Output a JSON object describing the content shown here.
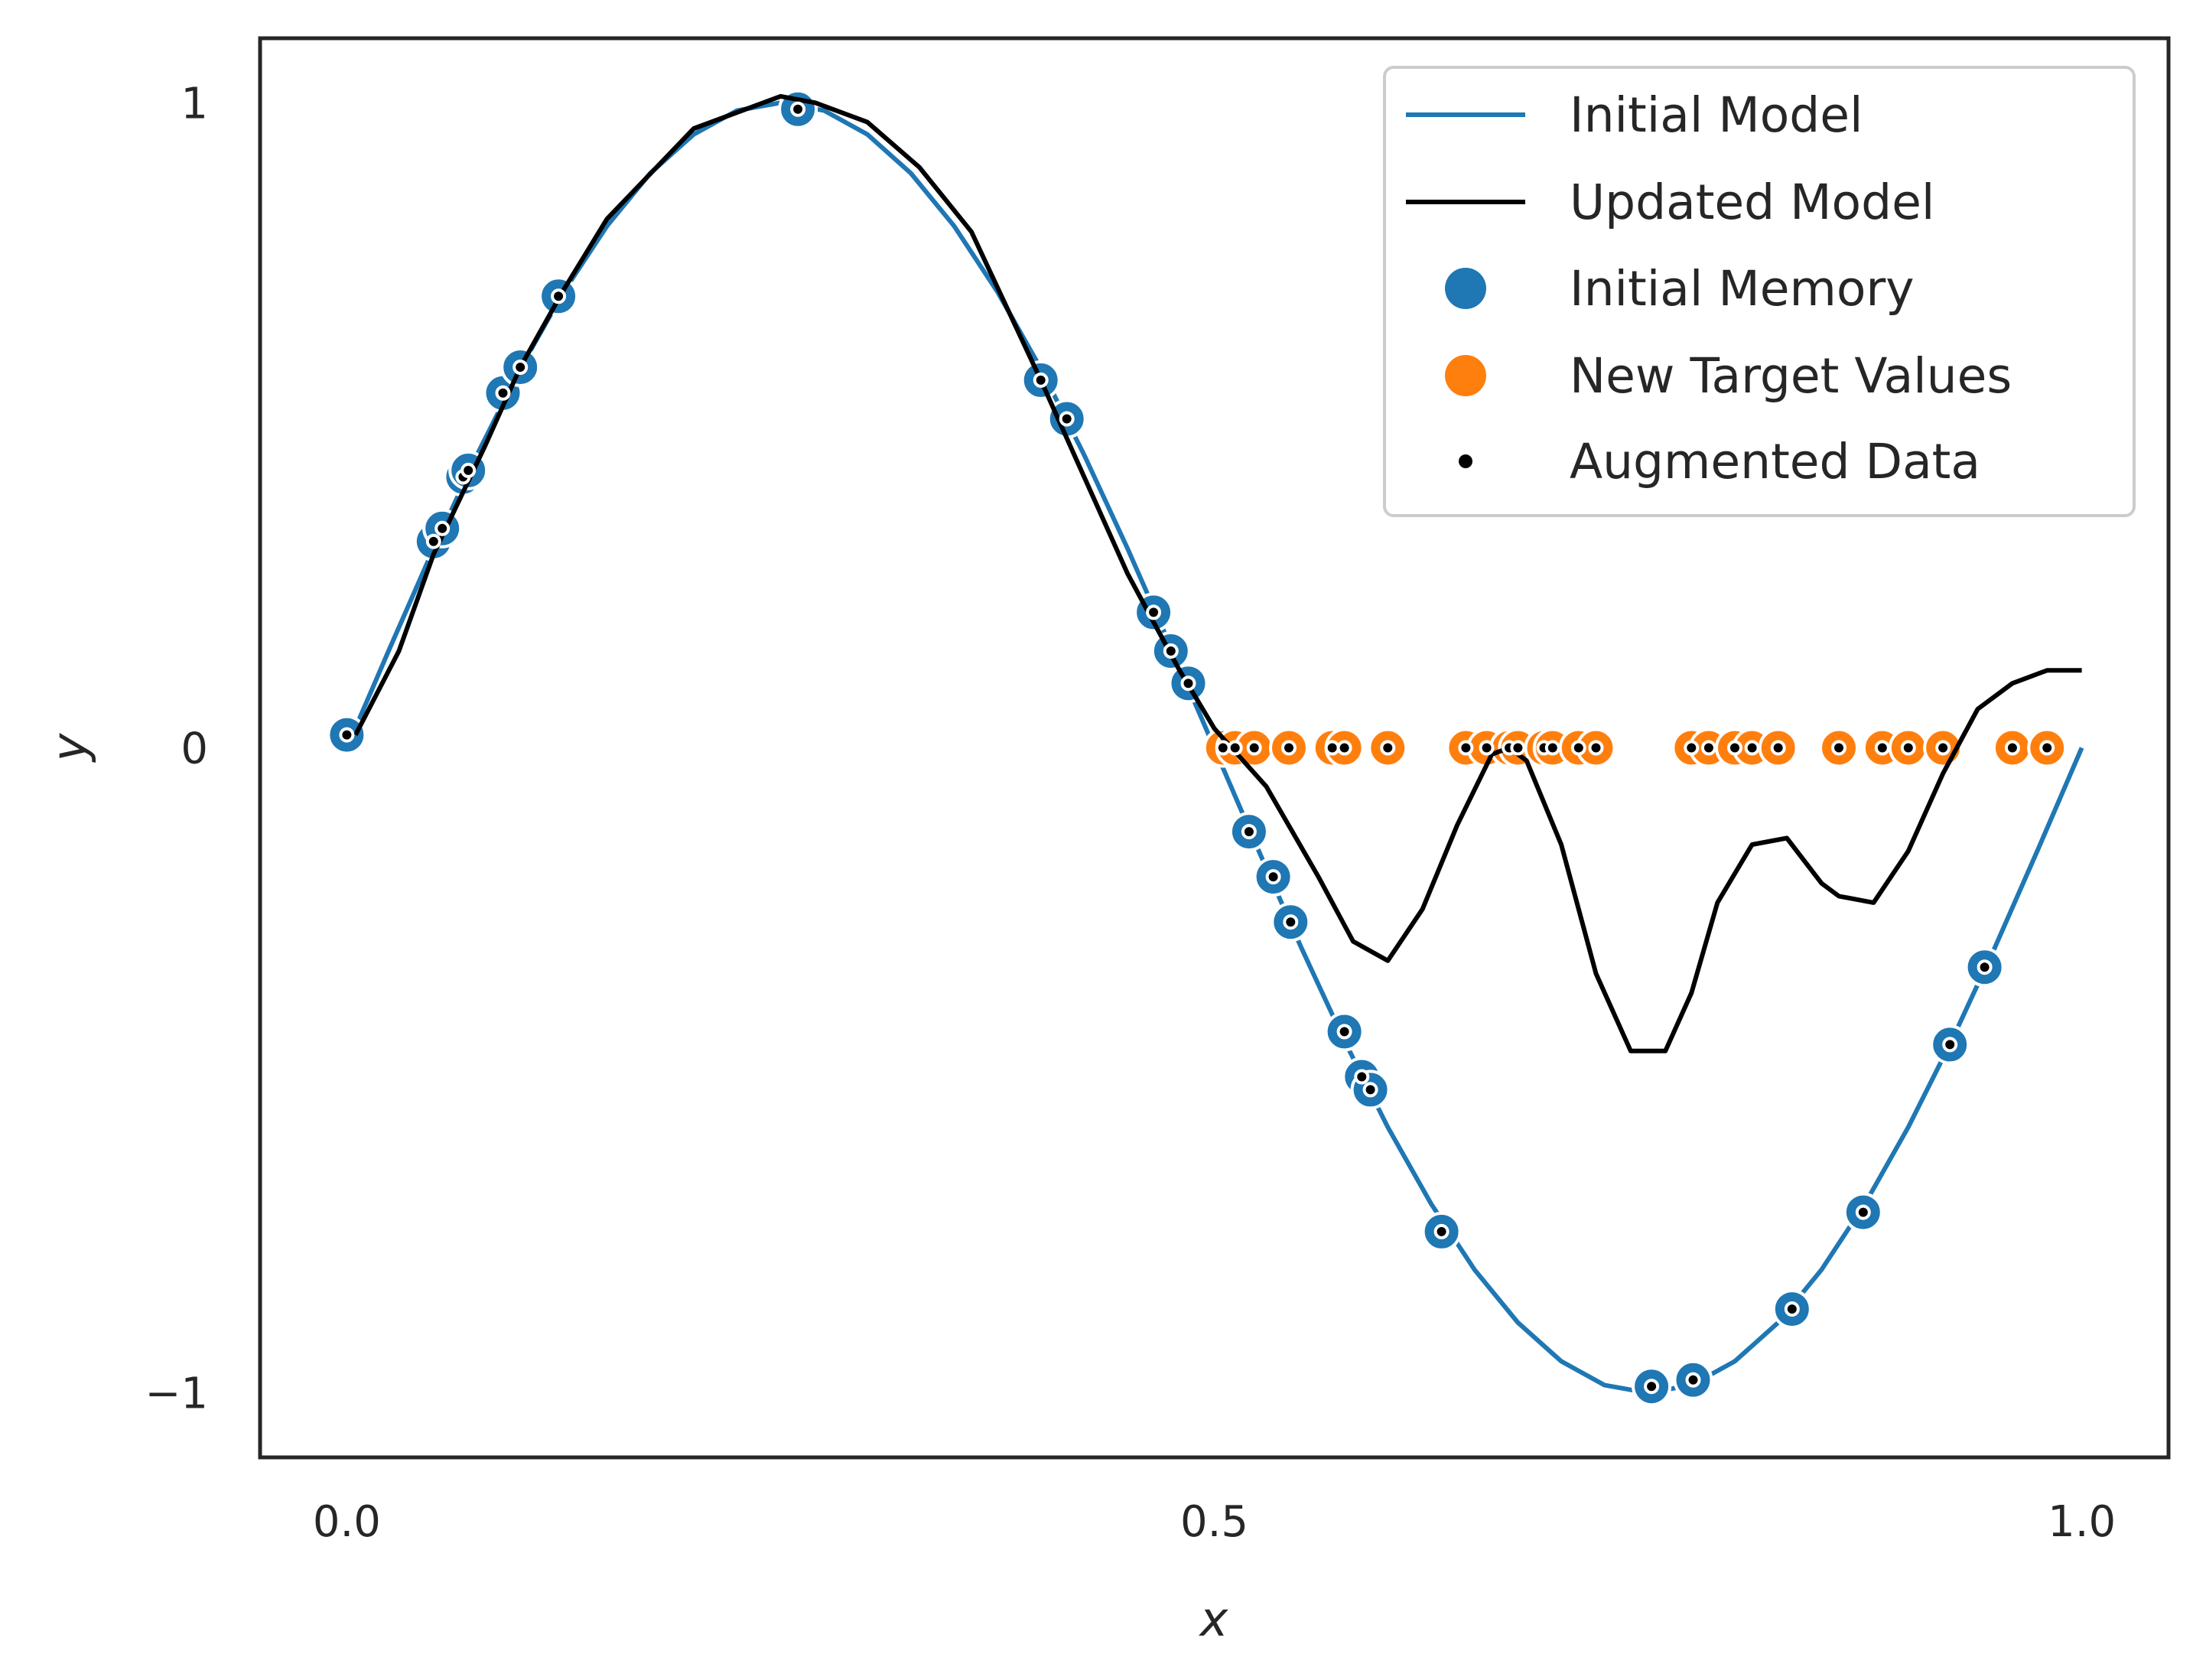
{
  "chart_data": {
    "type": "scatter",
    "xlabel": "x",
    "ylabel": "y",
    "xlim": [
      -0.05,
      1.05
    ],
    "ylim": [
      -1.1,
      1.1
    ],
    "x_ticks": [
      {
        "value": 0.0,
        "label": "0.0"
      },
      {
        "value": 0.5,
        "label": "0.5"
      },
      {
        "value": 1.0,
        "label": "1.0"
      }
    ],
    "y_ticks": [
      {
        "value": 1,
        "label": "1"
      },
      {
        "value": 0,
        "label": "0"
      },
      {
        "value": -1,
        "label": "−1"
      }
    ],
    "grid": false,
    "legend_position": "top-right",
    "colors": {
      "initial": "#1f77b4",
      "updated": "#000000",
      "new_target": "#ff7f0e",
      "augmented": "#000000",
      "axes": "#262626"
    },
    "series": [
      {
        "name": "Initial Model",
        "kind": "line",
        "color": "#1f77b4",
        "x": [
          0.0,
          0.025,
          0.05,
          0.075,
          0.1,
          0.125,
          0.15,
          0.175,
          0.2,
          0.225,
          0.25,
          0.275,
          0.3,
          0.325,
          0.35,
          0.375,
          0.4,
          0.425,
          0.45,
          0.475,
          0.5,
          0.525,
          0.55,
          0.575,
          0.6,
          0.625,
          0.65,
          0.675,
          0.7,
          0.725,
          0.75,
          0.775,
          0.8,
          0.825,
          0.85,
          0.875,
          0.9,
          0.925,
          0.95,
          0.975,
          1.0
        ],
        "y": [
          0.0,
          0.156,
          0.309,
          0.454,
          0.588,
          0.707,
          0.809,
          0.891,
          0.951,
          0.988,
          1.0,
          0.988,
          0.951,
          0.891,
          0.809,
          0.707,
          0.588,
          0.454,
          0.309,
          0.156,
          0.0,
          -0.156,
          -0.309,
          -0.454,
          -0.588,
          -0.707,
          -0.809,
          -0.891,
          -0.951,
          -0.988,
          -1.0,
          -0.988,
          -0.951,
          -0.891,
          -0.809,
          -0.707,
          -0.588,
          -0.454,
          -0.309,
          -0.156,
          0.0
        ]
      },
      {
        "name": "Updated Model",
        "kind": "line",
        "color": "#000000",
        "x": [
          0.005,
          0.03,
          0.05,
          0.08,
          0.1,
          0.125,
          0.15,
          0.2,
          0.25,
          0.27,
          0.3,
          0.33,
          0.36,
          0.4,
          0.42,
          0.45,
          0.48,
          0.5,
          0.53,
          0.56,
          0.58,
          0.6,
          0.62,
          0.64,
          0.66,
          0.67,
          0.68,
          0.7,
          0.71,
          0.72,
          0.74,
          0.76,
          0.775,
          0.79,
          0.81,
          0.83,
          0.85,
          0.86,
          0.88,
          0.9,
          0.92,
          0.94,
          0.96,
          0.98,
          1.0
        ],
        "y": [
          0.02,
          0.15,
          0.3,
          0.47,
          0.59,
          0.71,
          0.82,
          0.96,
          1.01,
          1.0,
          0.97,
          0.9,
          0.8,
          0.57,
          0.45,
          0.27,
          0.12,
          0.03,
          -0.06,
          -0.2,
          -0.3,
          -0.33,
          -0.25,
          -0.12,
          -0.01,
          0.0,
          -0.02,
          -0.15,
          -0.25,
          -0.35,
          -0.47,
          -0.47,
          -0.38,
          -0.24,
          -0.15,
          -0.14,
          -0.21,
          -0.23,
          -0.24,
          -0.16,
          -0.04,
          0.06,
          0.1,
          0.12,
          0.12
        ]
      },
      {
        "name": "Initial Memory",
        "kind": "scatter",
        "color": "#1f77b4",
        "x": [
          0.0,
          0.05,
          0.055,
          0.067,
          0.07,
          0.09,
          0.1,
          0.122,
          0.26,
          0.4,
          0.415,
          0.465,
          0.475,
          0.485,
          0.52,
          0.534,
          0.544,
          0.575,
          0.585,
          0.59,
          0.631,
          0.752,
          0.776,
          0.833,
          0.874,
          0.924,
          0.944
        ],
        "y": [
          0.02,
          0.32,
          0.34,
          0.42,
          0.43,
          0.55,
          0.59,
          0.7,
          0.99,
          0.57,
          0.51,
          0.21,
          0.15,
          0.1,
          -0.13,
          -0.2,
          -0.27,
          -0.44,
          -0.51,
          -0.53,
          -0.75,
          -0.99,
          -0.98,
          -0.87,
          -0.72,
          -0.46,
          -0.34
        ]
      },
      {
        "name": "New Target Values",
        "kind": "scatter",
        "color": "#ff7f0e",
        "x": [
          0.505,
          0.512,
          0.523,
          0.543,
          0.568,
          0.575,
          0.6,
          0.645,
          0.657,
          0.67,
          0.675,
          0.69,
          0.695,
          0.71,
          0.72,
          0.775,
          0.785,
          0.8,
          0.81,
          0.825,
          0.86,
          0.885,
          0.9,
          0.92,
          0.96,
          0.98
        ],
        "y": [
          0,
          0,
          0,
          0,
          0,
          0,
          0,
          0,
          0,
          0,
          0,
          0,
          0,
          0,
          0,
          0,
          0,
          0,
          0,
          0,
          0,
          0,
          0,
          0,
          0,
          0
        ]
      },
      {
        "name": "Augmented Data",
        "kind": "scatter",
        "color": "#000000",
        "x": [
          0.0,
          0.05,
          0.055,
          0.067,
          0.07,
          0.09,
          0.1,
          0.122,
          0.26,
          0.4,
          0.415,
          0.465,
          0.475,
          0.485,
          0.52,
          0.534,
          0.544,
          0.575,
          0.585,
          0.59,
          0.631,
          0.752,
          0.776,
          0.833,
          0.874,
          0.924,
          0.944,
          0.505,
          0.512,
          0.523,
          0.543,
          0.568,
          0.575,
          0.6,
          0.645,
          0.657,
          0.67,
          0.675,
          0.69,
          0.695,
          0.71,
          0.72,
          0.775,
          0.785,
          0.8,
          0.81,
          0.825,
          0.86,
          0.885,
          0.9,
          0.92,
          0.96,
          0.98
        ],
        "y": [
          0.02,
          0.32,
          0.34,
          0.42,
          0.43,
          0.55,
          0.59,
          0.7,
          0.99,
          0.57,
          0.51,
          0.21,
          0.15,
          0.1,
          -0.13,
          -0.2,
          -0.27,
          -0.44,
          -0.51,
          -0.53,
          -0.75,
          -0.99,
          -0.98,
          -0.87,
          -0.72,
          -0.46,
          -0.34,
          0,
          0,
          0,
          0,
          0,
          0,
          0,
          0,
          0,
          0,
          0,
          0,
          0,
          0,
          0,
          0,
          0,
          0,
          0,
          0,
          0,
          0,
          0,
          0,
          0,
          0
        ]
      }
    ]
  }
}
